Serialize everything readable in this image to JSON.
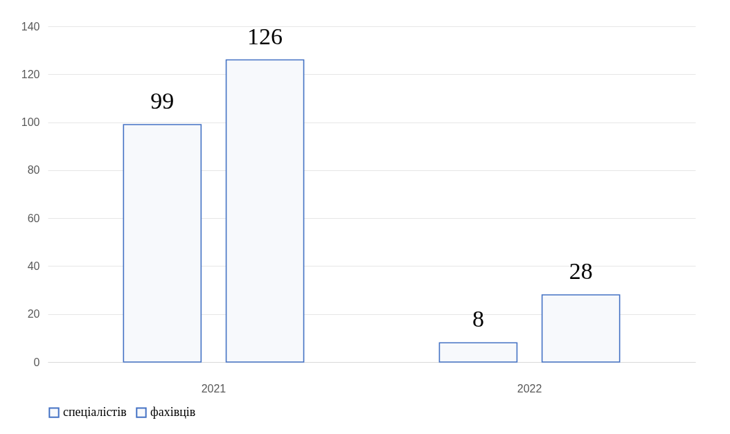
{
  "chart_data": {
    "type": "bar",
    "categories": [
      "2021",
      "2022"
    ],
    "series": [
      {
        "name": "спеціалістів",
        "color": "#4472c4",
        "values": [
          99,
          8
        ]
      },
      {
        "name": "фахівців",
        "color": "#4472c4",
        "values": [
          126,
          28
        ]
      }
    ],
    "ylim": [
      0,
      140
    ],
    "yticks": [
      0,
      20,
      40,
      60,
      80,
      100,
      120,
      140
    ],
    "grid": "y",
    "legend": "bottom",
    "data_labels": true
  }
}
